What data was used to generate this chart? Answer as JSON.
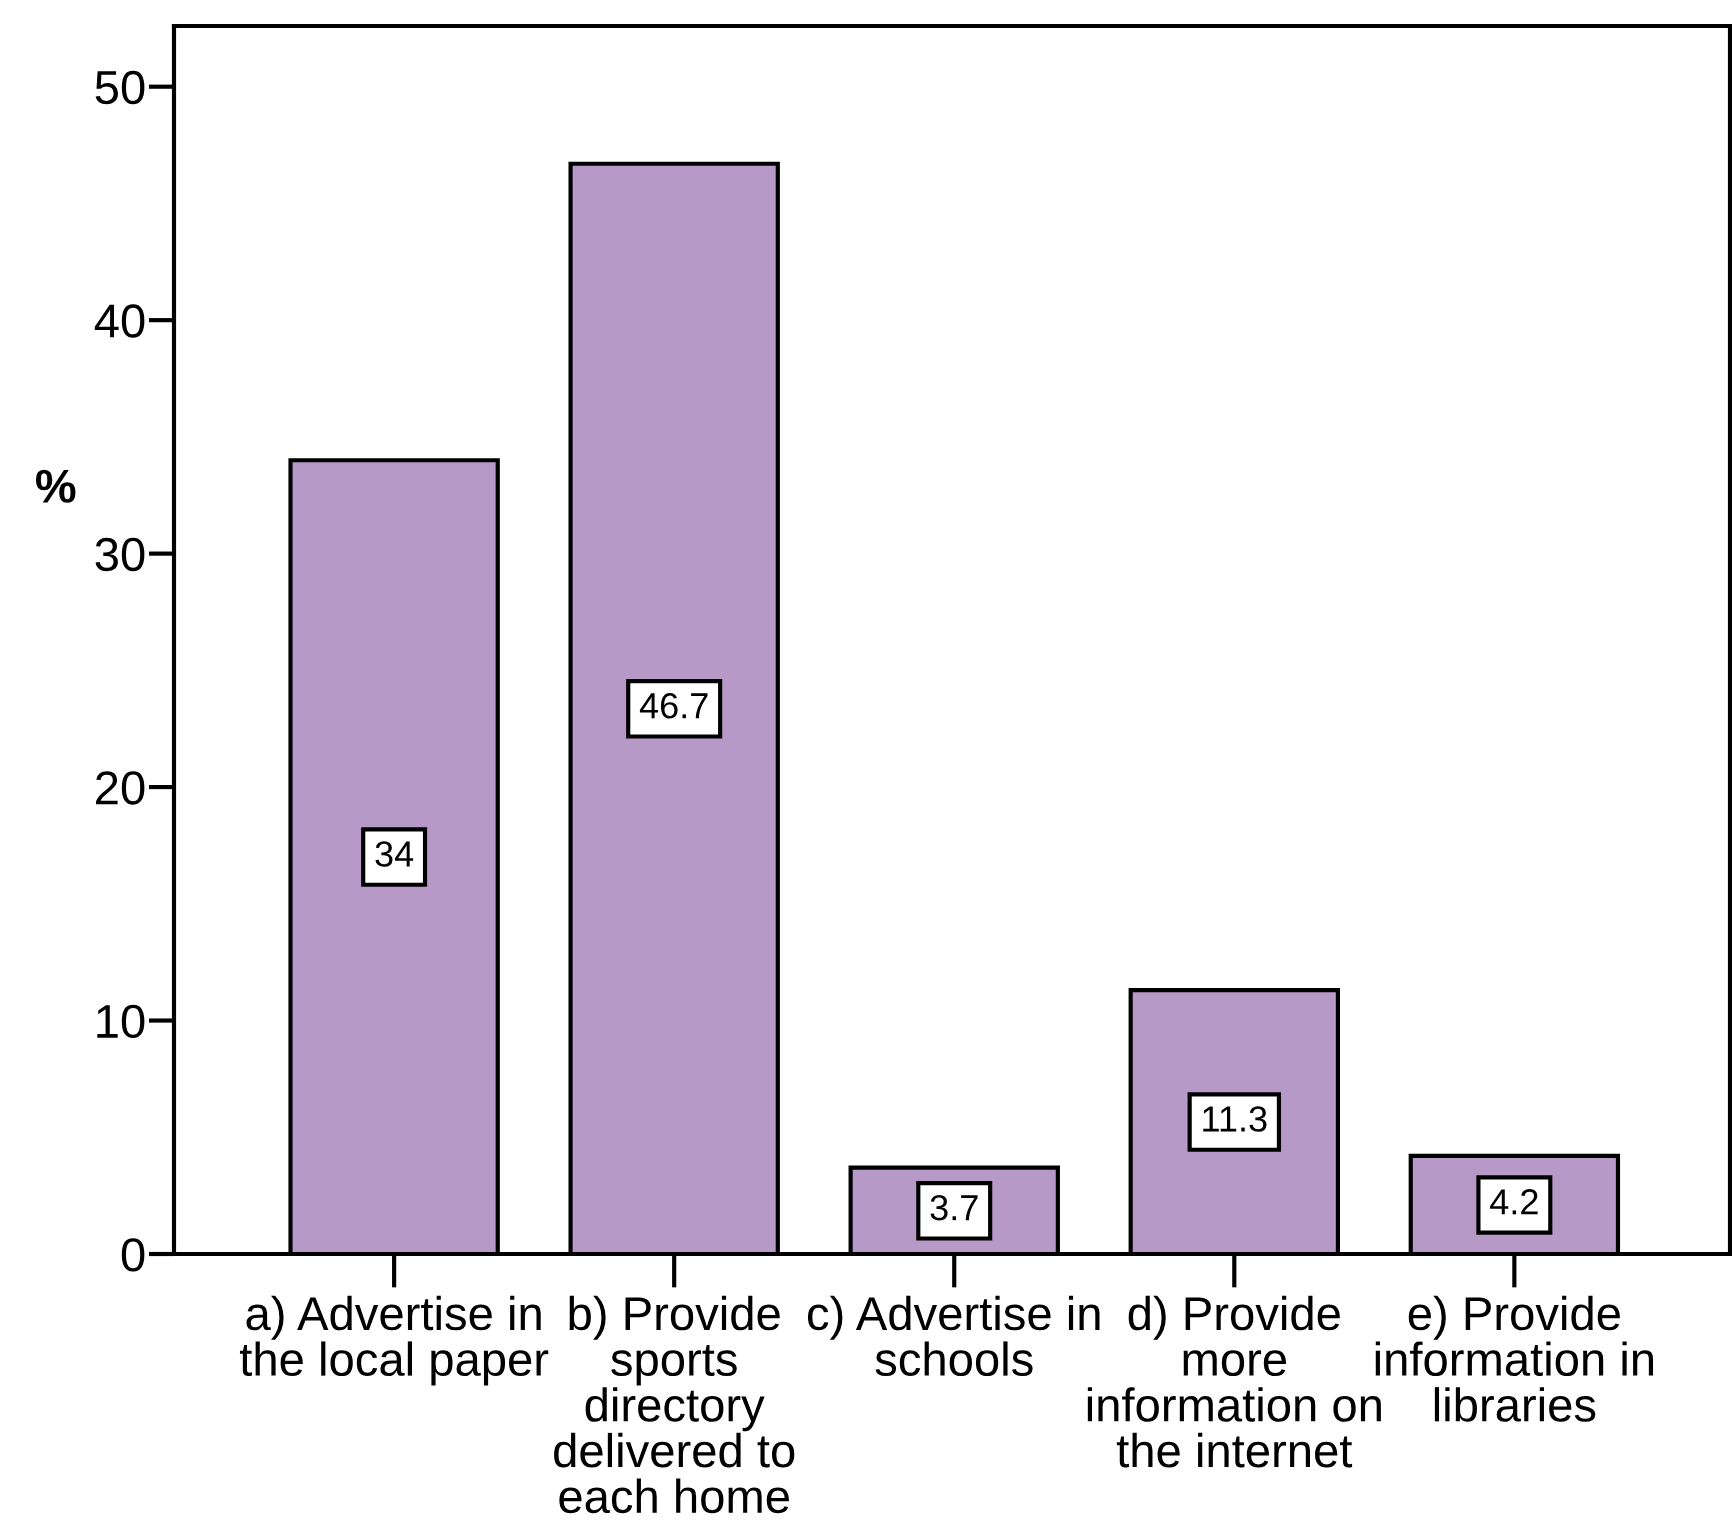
{
  "chart_data": {
    "type": "bar",
    "ylabel": "%",
    "categories": [
      "a) Advertise in\nthe local paper",
      "b) Provide\nsports\ndirectory\ndelivered to\neach home",
      "c) Advertise in\nschools",
      "d) Provide\nmore\ninformation on\nthe internet",
      "e) Provide\ninformation in\nlibraries"
    ],
    "values": [
      34,
      46.7,
      3.7,
      11.3,
      4.2
    ],
    "color": "#b799c8",
    "ylim": [
      0,
      52.6
    ],
    "yticks": [
      0,
      10,
      20,
      30,
      40,
      50
    ],
    "data_labels": true
  }
}
